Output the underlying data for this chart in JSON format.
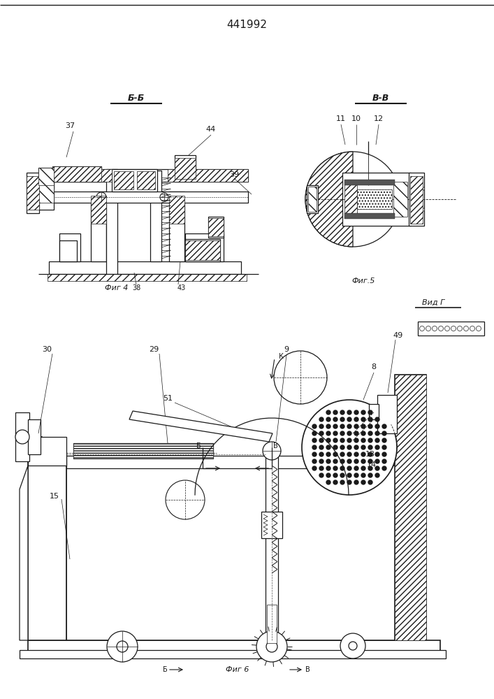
{
  "title": "441992",
  "bg_color": "#ffffff",
  "line_color": "#1a1a1a",
  "fig4_label": "Фиг 4",
  "fig5_label": "Фиг.5",
  "fig6_label": "Фиг 6",
  "section_bb": "Б-Б",
  "section_vv": "В-В",
  "vid_g": "Вид Г"
}
